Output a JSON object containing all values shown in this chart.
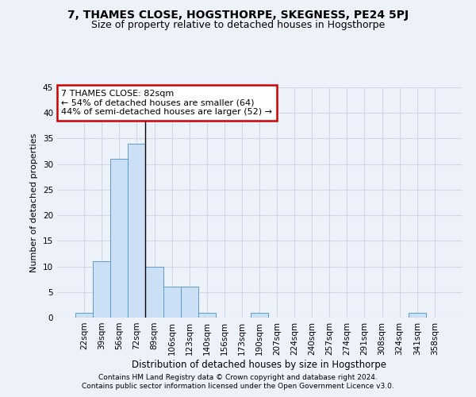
{
  "title": "7, THAMES CLOSE, HOGSTHORPE, SKEGNESS, PE24 5PJ",
  "subtitle": "Size of property relative to detached houses in Hogsthorpe",
  "xlabel": "Distribution of detached houses by size in Hogsthorpe",
  "ylabel": "Number of detached properties",
  "footnote1": "Contains HM Land Registry data © Crown copyright and database right 2024.",
  "footnote2": "Contains public sector information licensed under the Open Government Licence v3.0.",
  "bin_labels": [
    "22sqm",
    "39sqm",
    "56sqm",
    "72sqm",
    "89sqm",
    "106sqm",
    "123sqm",
    "140sqm",
    "156sqm",
    "173sqm",
    "190sqm",
    "207sqm",
    "224sqm",
    "240sqm",
    "257sqm",
    "274sqm",
    "291sqm",
    "308sqm",
    "324sqm",
    "341sqm",
    "358sqm"
  ],
  "bar_values": [
    1,
    11,
    31,
    34,
    10,
    6,
    6,
    1,
    0,
    0,
    1,
    0,
    0,
    0,
    0,
    0,
    0,
    0,
    0,
    1,
    0
  ],
  "bar_color": "#cce0f5",
  "bar_edge_color": "#5b9bd5",
  "subject_line_bin_index": 3.5,
  "ylim": [
    0,
    45
  ],
  "yticks": [
    0,
    5,
    10,
    15,
    20,
    25,
    30,
    35,
    40,
    45
  ],
  "annotation_text_line1": "7 THAMES CLOSE: 82sqm",
  "annotation_text_line2": "← 54% of detached houses are smaller (64)",
  "annotation_text_line3": "44% of semi-detached houses are larger (52) →",
  "annotation_box_edgecolor": "#cc0000",
  "grid_color": "#d0d8e8",
  "background_color": "#edf1f9",
  "title_fontsize": 10,
  "subtitle_fontsize": 9,
  "xlabel_fontsize": 8.5,
  "ylabel_fontsize": 8,
  "tick_fontsize": 7.5,
  "annotation_fontsize": 8,
  "footnote_fontsize": 6.5
}
